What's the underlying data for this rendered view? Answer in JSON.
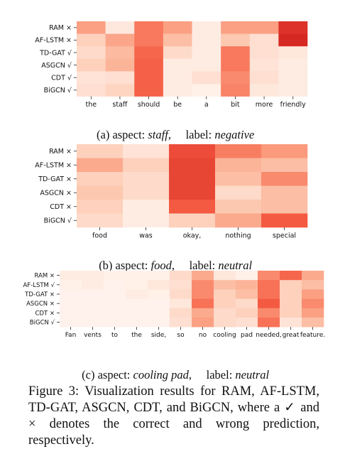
{
  "chart_data": [
    {
      "type": "heatmap",
      "rows": [
        "RAM ×",
        "AF-LSTM ×",
        "TD-GAT √",
        "ASGCN √",
        "CDT √",
        "BiGCN √"
      ],
      "columns": [
        "the",
        "staff",
        "should",
        "be",
        "a",
        "bit",
        "more",
        "friendly"
      ],
      "values": [
        [
          0.45,
          0.07,
          0.62,
          0.45,
          0.05,
          0.45,
          0.45,
          0.95
        ],
        [
          0.2,
          0.42,
          0.62,
          0.3,
          0.05,
          0.25,
          0.12,
          1.0
        ],
        [
          0.15,
          0.32,
          0.7,
          0.15,
          0.05,
          0.62,
          0.12,
          0.08
        ],
        [
          0.2,
          0.35,
          0.72,
          0.05,
          0.05,
          0.62,
          0.1,
          0.05
        ],
        [
          0.1,
          0.12,
          0.72,
          0.05,
          0.12,
          0.55,
          0.12,
          0.05
        ],
        [
          0.12,
          0.18,
          0.72,
          0.05,
          0.03,
          0.58,
          0.08,
          0.05
        ]
      ],
      "caption": {
        "prefix": "(a) aspect: ",
        "aspect": "staff",
        "mid": ",     label: ",
        "label": "negative"
      }
    },
    {
      "type": "heatmap",
      "rows": [
        "RAM ×",
        "AF-LSTM ×",
        "TD-GAT ×",
        "ASGCN ×",
        "CDT ×",
        "BiGCN √"
      ],
      "columns": [
        "food",
        "was",
        "okay,",
        "nothing",
        "special"
      ],
      "values": [
        [
          0.2,
          0.1,
          0.82,
          0.6,
          0.48
        ],
        [
          0.4,
          0.2,
          0.85,
          0.35,
          0.3
        ],
        [
          0.2,
          0.15,
          0.85,
          0.3,
          0.55
        ],
        [
          0.25,
          0.15,
          0.85,
          0.15,
          0.3
        ],
        [
          0.2,
          0.05,
          0.75,
          0.25,
          0.3
        ],
        [
          0.15,
          0.05,
          0.2,
          0.4,
          0.75
        ]
      ],
      "caption": {
        "prefix": "(b) aspect: ",
        "aspect": "food",
        "mid": ",     label: ",
        "label": "neutral"
      }
    },
    {
      "type": "heatmap",
      "rows": [
        "RAM ×",
        "AF-LSTM √",
        "TD-GAT ×",
        "ASGCN ×",
        "CDT ×",
        "BiGCN √"
      ],
      "columns": [
        "Fan",
        "vents",
        "to",
        "the",
        "side,",
        "so",
        "no",
        "cooling",
        "pad",
        "needed,",
        "great",
        "feature."
      ],
      "values": [
        [
          0.05,
          0.05,
          0.03,
          0.03,
          0.03,
          0.15,
          0.4,
          0.08,
          0.03,
          0.55,
          0.7,
          0.4
        ],
        [
          0.03,
          0.05,
          0.02,
          0.03,
          0.08,
          0.12,
          0.55,
          0.3,
          0.35,
          0.65,
          0.2,
          0.3
        ],
        [
          0.02,
          0.02,
          0.02,
          0.05,
          0.03,
          0.15,
          0.55,
          0.2,
          0.3,
          0.65,
          0.2,
          0.45
        ],
        [
          0.02,
          0.02,
          0.02,
          0.02,
          0.02,
          0.08,
          0.65,
          0.2,
          0.15,
          0.75,
          0.2,
          0.55
        ],
        [
          0.02,
          0.02,
          0.02,
          0.02,
          0.02,
          0.15,
          0.4,
          0.15,
          0.2,
          0.55,
          0.2,
          0.45
        ],
        [
          0.02,
          0.02,
          0.02,
          0.02,
          0.02,
          0.12,
          0.45,
          0.15,
          0.12,
          0.65,
          0.1,
          0.3
        ]
      ],
      "caption": {
        "prefix": "(c) aspect: ",
        "aspect": "cooling pad",
        "mid": ",     label: ",
        "label": "neutral"
      }
    }
  ],
  "figure_caption": "Figure 3: Visualization results for RAM, AF-LSTM, TD-GAT, ASGCN, CDT, and BiGCN, where a ✓ and × denotes the correct and wrong prediction, respectively."
}
